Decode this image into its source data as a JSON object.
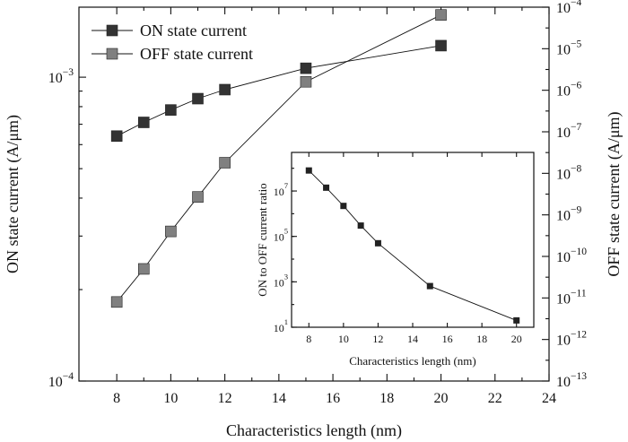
{
  "chart_data": {
    "type": "line",
    "main": {
      "xlabel": "Characteristics length (nm)",
      "ylabel_left": "ON state current (A/μm)",
      "ylabel_right": "OFF state current (A/μm)",
      "xlim": [
        6.6,
        24
      ],
      "xticks": [
        8,
        10,
        12,
        14,
        16,
        18,
        20,
        22,
        24
      ],
      "ylim_left": [
        0.0001,
        0.0017
      ],
      "yscale_left": "log",
      "yticks_left": [
        {
          "value": 0.001,
          "label": "10",
          "exp": "-3"
        },
        {
          "value": 0.0001,
          "label": "10",
          "exp": "-4"
        }
      ],
      "ylim_right": [
        1e-13,
        0.0001
      ],
      "yscale_right": "log",
      "yticks_right": [
        {
          "value": 0.0001,
          "label": "10",
          "exp": "-4"
        },
        {
          "value": 1e-05,
          "label": "10",
          "exp": "-5"
        },
        {
          "value": 1e-06,
          "label": "10",
          "exp": "-6"
        },
        {
          "value": 1e-07,
          "label": "10",
          "exp": "-7"
        },
        {
          "value": 1e-08,
          "label": "10",
          "exp": "-8"
        },
        {
          "value": 1e-09,
          "label": "10",
          "exp": "-9"
        },
        {
          "value": 1e-10,
          "label": "10",
          "exp": "-10"
        },
        {
          "value": 1e-11,
          "label": "10",
          "exp": "-11"
        },
        {
          "value": 1e-12,
          "label": "10",
          "exp": "-12"
        },
        {
          "value": 1e-13,
          "label": "10",
          "exp": "-13"
        }
      ],
      "legend_position": "top-left",
      "series": [
        {
          "name": "ON state current",
          "axis": "left",
          "color": "#333333",
          "x": [
            8,
            9,
            10,
            11,
            12,
            15,
            20
          ],
          "y": [
            0.00064,
            0.00071,
            0.00078,
            0.00085,
            0.00091,
            0.00107,
            0.00127
          ]
        },
        {
          "name": "OFF state current",
          "axis": "right",
          "color": "#808080",
          "x": [
            8,
            9,
            10,
            11,
            12,
            15,
            20
          ],
          "y": [
            8e-12,
            5e-11,
            4e-10,
            2.7e-09,
            1.8e-08,
            1.6e-06,
            6.5e-05
          ]
        }
      ]
    },
    "inset": {
      "xlabel": "Characteristics length (nm)",
      "ylabel": "ON to OFF current ratio",
      "xlim": [
        7,
        21
      ],
      "xticks": [
        8,
        10,
        12,
        14,
        16,
        18,
        20
      ],
      "ylim": [
        10,
        500000000.0
      ],
      "yscale": "log",
      "yticks": [
        {
          "value": 10000000.0,
          "label": "10",
          "exp": "7"
        },
        {
          "value": 100000.0,
          "label": "10",
          "exp": "5"
        },
        {
          "value": 1000.0,
          "label": "10",
          "exp": "3"
        },
        {
          "value": 10,
          "label": "10",
          "exp": "1"
        }
      ],
      "series": [
        {
          "x": [
            8,
            9,
            10,
            11,
            12,
            15,
            20
          ],
          "y": [
            80000000.0,
            14000000.0,
            2200000.0,
            300000.0,
            50000.0,
            650,
            20
          ],
          "color": "#222222"
        }
      ]
    }
  }
}
